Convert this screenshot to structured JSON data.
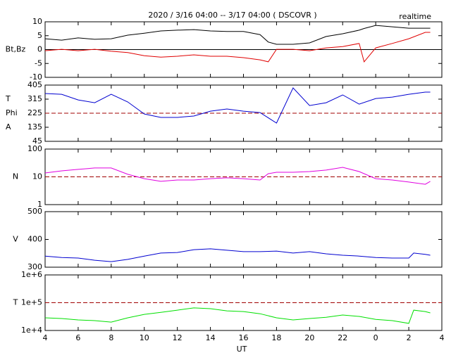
{
  "chart_data": [
    {
      "type": "line",
      "title": "2020 / 3/16  04:00 -- 3/17  04:00 ( DSCOVR )",
      "annotation": "realtime",
      "ylabel": [
        "Bt,Bz"
      ],
      "xlim": [
        4,
        28
      ],
      "ylim": [
        -10,
        10
      ],
      "yticks": [
        -10,
        -5,
        0,
        5,
        10
      ],
      "reference_line": {
        "value": 0,
        "style": "solid",
        "color": "#000000"
      },
      "x": [
        4,
        5,
        6,
        7,
        8,
        9,
        10,
        11,
        12,
        13,
        14,
        15,
        16,
        17,
        17.5,
        18,
        19,
        20,
        21,
        22,
        23,
        23.3,
        24,
        25,
        26,
        27,
        27.3
      ],
      "series": [
        {
          "color": "#000000",
          "values": [
            3.9,
            3.4,
            4.2,
            3.7,
            3.9,
            5.2,
            5.9,
            6.7,
            7,
            7.2,
            6.7,
            6.5,
            6.5,
            5.4,
            2.7,
            1.9,
            1.9,
            2.4,
            4.7,
            5.7,
            7,
            7.6,
            8.7,
            8.2,
            7.7,
            7.7,
            7.7
          ]
        },
        {
          "color": "#e00000",
          "values": [
            -0.4,
            0.1,
            -0.4,
            0.1,
            -0.6,
            -1.1,
            -2.2,
            -2.7,
            -2.4,
            -1.9,
            -2.4,
            -2.4,
            -2.9,
            -3.7,
            -4.4,
            0.1,
            0.1,
            -0.4,
            0.6,
            1.1,
            2.2,
            -4.4,
            0.6,
            2.2,
            3.9,
            6.2,
            6.2
          ]
        }
      ]
    },
    {
      "type": "line",
      "ylabel": [
        "T",
        "Phi",
        "A"
      ],
      "xlim": [
        4,
        28
      ],
      "ylim": [
        45,
        405
      ],
      "yticks": [
        45,
        135,
        225,
        315,
        405
      ],
      "reference_line": {
        "value": 225,
        "style": "dashed",
        "color": "#a00000"
      },
      "x": [
        4,
        5,
        6,
        7,
        8,
        9,
        10,
        11,
        12,
        13,
        14,
        15,
        16,
        17,
        18,
        19,
        20,
        21,
        22,
        23,
        24,
        25,
        26,
        27,
        27.3
      ],
      "series": [
        {
          "color": "#0000d0",
          "values": [
            351,
            346,
            310,
            292,
            346,
            297,
            220,
            198,
            198,
            207,
            238,
            252,
            238,
            229,
            162,
            387,
            274,
            292,
            342,
            283,
            319,
            328,
            346,
            360,
            360
          ]
        }
      ]
    },
    {
      "type": "line",
      "ylabel": [
        "N"
      ],
      "log": true,
      "xlim": [
        4,
        28
      ],
      "ylim": [
        1,
        100
      ],
      "yticks": [
        1,
        10,
        100
      ],
      "reference_line": {
        "value": 10,
        "style": "dashed",
        "color": "#a00000"
      },
      "x": [
        4,
        5,
        6,
        7,
        8,
        9,
        10,
        11,
        12,
        13,
        14,
        15,
        16,
        17,
        17.5,
        18,
        19,
        20,
        21,
        22,
        23,
        24,
        25,
        26,
        27,
        27.3
      ],
      "series": [
        {
          "color": "#e000e0",
          "values": [
            13.8,
            16.4,
            18.5,
            20.8,
            20.8,
            12.3,
            8.6,
            6.9,
            7.7,
            7.7,
            8.6,
            9.2,
            8.6,
            7.7,
            13,
            14.6,
            14.6,
            15.5,
            17.5,
            22,
            15.5,
            8.6,
            7.7,
            6.5,
            5.4,
            6.9
          ]
        }
      ]
    },
    {
      "type": "line",
      "ylabel": [
        "V"
      ],
      "xlim": [
        4,
        28
      ],
      "ylim": [
        300,
        500
      ],
      "yticks": [
        300,
        400,
        500
      ],
      "x": [
        4,
        5,
        6,
        7,
        8,
        9,
        10,
        11,
        12,
        13,
        14,
        15,
        16,
        17,
        18,
        19,
        20,
        21,
        22,
        23,
        24,
        25,
        26,
        26.3,
        27,
        27.3
      ],
      "series": [
        {
          "color": "#0000d0",
          "values": [
            340,
            335,
            333,
            325,
            320,
            328,
            340,
            351,
            353,
            363,
            366,
            361,
            356,
            356,
            358,
            351,
            356,
            348,
            343,
            340,
            335,
            333,
            333,
            351,
            346,
            343
          ]
        }
      ]
    },
    {
      "type": "line",
      "ylabel": [
        "T"
      ],
      "log": true,
      "xlabel": "UT",
      "xlim": [
        4,
        28
      ],
      "ylim": [
        10000,
        1000000
      ],
      "yticks": [
        {
          "value": 10000,
          "label": "1e+4"
        },
        {
          "value": 100000,
          "label": "1e+5"
        },
        {
          "value": 1000000,
          "label": "1e+6"
        }
      ],
      "xticks": [
        4,
        6,
        8,
        10,
        12,
        14,
        16,
        18,
        20,
        22,
        {
          "value": 24,
          "label": "0"
        },
        {
          "value": 26,
          "label": "2"
        },
        {
          "value": 28,
          "label": "4"
        }
      ],
      "reference_line": {
        "value": 100000,
        "style": "dashed",
        "color": "#a00000"
      },
      "x": [
        4,
        5,
        6,
        7,
        8,
        9,
        10,
        11,
        12,
        13,
        14,
        15,
        16,
        17,
        18,
        19,
        20,
        21,
        22,
        23,
        24,
        25,
        26,
        26.3,
        27,
        27.3
      ],
      "series": [
        {
          "color": "#00e000",
          "values": [
            28600,
            27000,
            24000,
            22600,
            20000,
            28600,
            38000,
            45000,
            54000,
            65000,
            61000,
            51000,
            48000,
            40000,
            28600,
            24000,
            27000,
            30000,
            36000,
            32000,
            25000,
            22600,
            18000,
            54000,
            48000,
            43000
          ]
        }
      ]
    }
  ]
}
